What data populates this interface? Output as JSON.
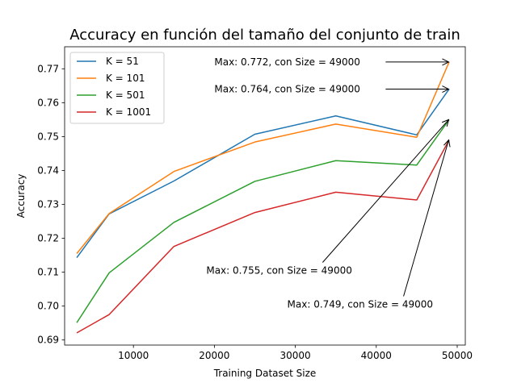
{
  "chart_data": {
    "type": "line",
    "title": "Accuracy en función del tamaño del conjunto de train",
    "xlabel": "Training Dataset Size",
    "ylabel": "Accuracy",
    "xlim": [
      1500,
      51000
    ],
    "ylim": [
      0.6885,
      0.7765
    ],
    "xticks": [
      10000,
      20000,
      30000,
      40000,
      50000
    ],
    "yticks": [
      0.69,
      0.7,
      0.71,
      0.72,
      0.73,
      0.74,
      0.75,
      0.76,
      0.77
    ],
    "x": [
      3000,
      7000,
      15000,
      25000,
      35000,
      45000,
      49000
    ],
    "series": [
      {
        "name": "K = 51",
        "color": "#1f77b4",
        "values": [
          0.7143,
          0.7272,
          0.7369,
          0.7507,
          0.7561,
          0.7505,
          0.764
        ]
      },
      {
        "name": "K = 101",
        "color": "#ff7f0e",
        "values": [
          0.7155,
          0.7273,
          0.7397,
          0.7484,
          0.7537,
          0.7498,
          0.772
        ]
      },
      {
        "name": "K = 501",
        "color": "#2ca02c",
        "values": [
          0.6951,
          0.7098,
          0.7247,
          0.7368,
          0.7429,
          0.7416,
          0.755
        ]
      },
      {
        "name": "K = 1001",
        "color": "#d62728",
        "values": [
          0.6921,
          0.6975,
          0.7176,
          0.7276,
          0.7336,
          0.7313,
          0.749
        ]
      }
    ],
    "legend": "upper-left",
    "grid": false,
    "annotations": [
      {
        "text": "Max: 0.772, con Size = 49000",
        "x": 49000,
        "y": 0.772,
        "text_x": 20000,
        "text_y": 0.772
      },
      {
        "text": "Max: 0.764, con Size = 49000",
        "x": 49000,
        "y": 0.764,
        "text_x": 20000,
        "text_y": 0.764
      },
      {
        "text": "Max: 0.755, con Size = 49000",
        "x": 49000,
        "y": 0.755,
        "text_x": 19000,
        "text_y": 0.7105
      },
      {
        "text": "Max: 0.749, con Size = 49000",
        "x": 49000,
        "y": 0.749,
        "text_x": 29000,
        "text_y": 0.7005
      }
    ]
  }
}
